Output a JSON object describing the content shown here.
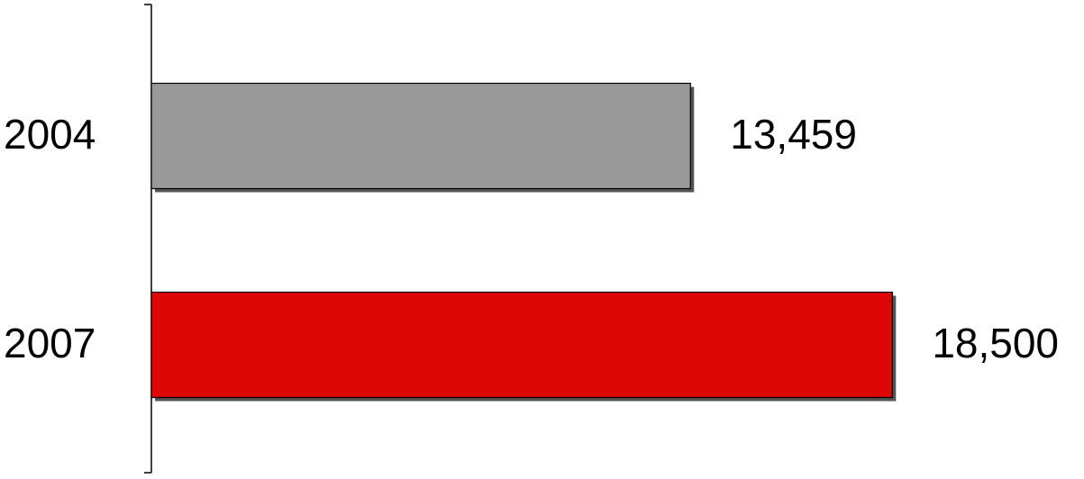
{
  "chart_data": {
    "type": "bar",
    "orientation": "horizontal",
    "categories": [
      "2004",
      "2007"
    ],
    "values": [
      13459,
      18500
    ],
    "value_labels": [
      "13,459",
      "18,500"
    ],
    "colors": [
      "#999999",
      "#dd0806"
    ]
  }
}
